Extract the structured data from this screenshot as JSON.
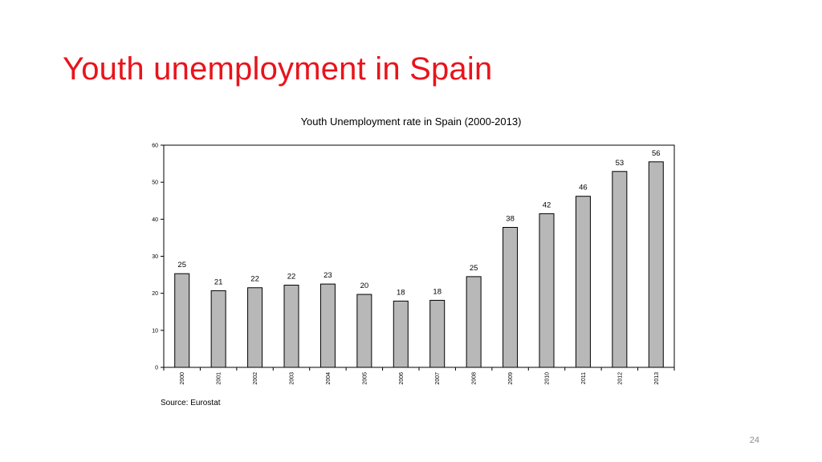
{
  "slide": {
    "title": "Youth unemployment in Spain",
    "page_number": "24"
  },
  "colors": {
    "title": "#e8141c",
    "bar_fill": "#b8b8b8",
    "bar_stroke": "#000000",
    "axis": "#000000",
    "page_number": "#8c8c8c"
  },
  "chart_data": {
    "type": "bar",
    "title": "Youth Unemployment rate in Spain (2000-2013)",
    "xlabel": "",
    "ylabel": "",
    "source": "Source: Eurostat",
    "categories": [
      "2000",
      "2001",
      "2002",
      "2003",
      "2004",
      "2005",
      "2006",
      "2007",
      "2008",
      "2009",
      "2010",
      "2011",
      "2012",
      "2013"
    ],
    "values": [
      25.3,
      20.7,
      21.5,
      22.2,
      22.5,
      19.7,
      17.9,
      18.1,
      24.5,
      37.8,
      41.5,
      46.2,
      52.9,
      55.5
    ],
    "data_labels": [
      "25",
      "21",
      "22",
      "22",
      "23",
      "20",
      "18",
      "18",
      "25",
      "38",
      "42",
      "46",
      "53",
      "56"
    ],
    "ylim": [
      0,
      60
    ],
    "yticks": [
      "0",
      "10",
      "20",
      "30",
      "40",
      "50",
      "60"
    ],
    "grid": false,
    "legend": "none"
  }
}
